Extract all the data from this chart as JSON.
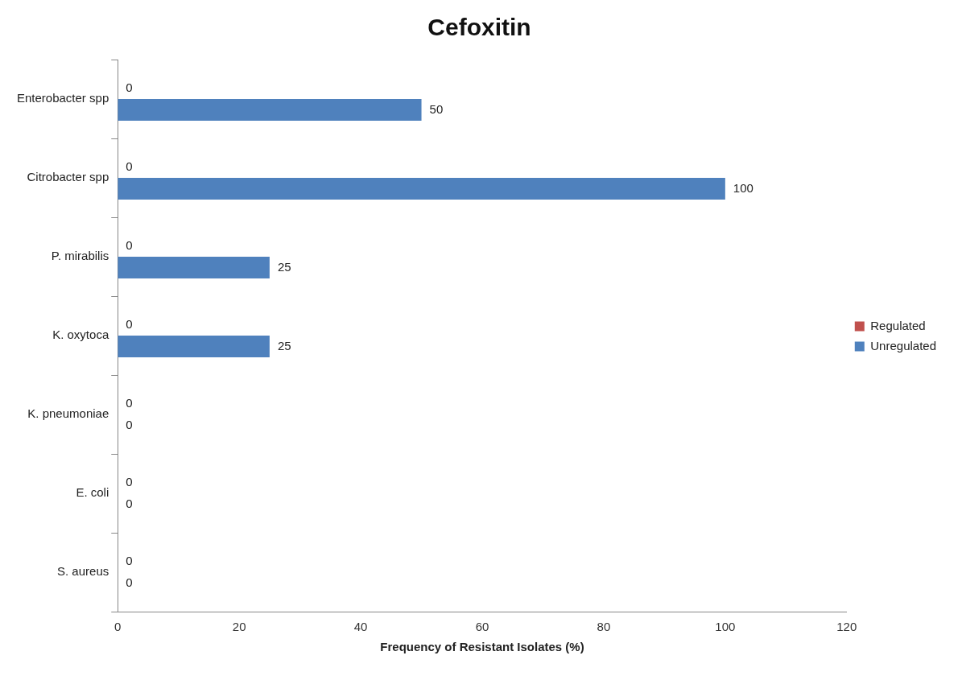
{
  "chart_data": {
    "type": "bar",
    "orientation": "horizontal",
    "title": "Cefoxitin",
    "xlabel": "Frequency of Resistant Isolates (%)",
    "categories": [
      "Enterobacter spp",
      "Citrobacter spp",
      "P. mirabilis",
      "K. oxytoca",
      "K. pneumoniae",
      "E. coli",
      "S. aureus"
    ],
    "series": [
      {
        "name": "Regulated",
        "color": "#c0504d",
        "values": [
          0,
          0,
          0,
          0,
          0,
          0,
          0
        ]
      },
      {
        "name": "Unregulated",
        "color": "#4f81bd",
        "values": [
          50,
          100,
          25,
          25,
          0,
          0,
          0
        ]
      }
    ],
    "xlim": [
      0,
      120
    ],
    "xticks": [
      0,
      20,
      40,
      60,
      80,
      100,
      120
    ],
    "grid": false,
    "legend": "right",
    "data_labels": true
  }
}
